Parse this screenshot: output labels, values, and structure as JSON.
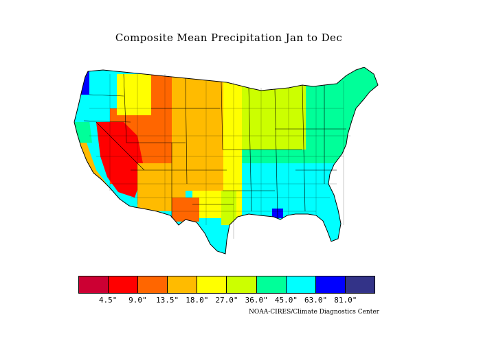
{
  "title": "Composite Mean Precipitation Jan to Dec",
  "credit": "NOAA-CIRES/Climate Diagnostics Center",
  "legend": {
    "colors": [
      "#cc0033",
      "#ff0000",
      "#ff6600",
      "#ffbb00",
      "#ffff00",
      "#ccff00",
      "#00ff99",
      "#00ffff",
      "#0000ff",
      "#333388"
    ],
    "labels": [
      "4.5\"",
      "9.0\"",
      "13.5\"",
      "18.0\"",
      "27.0\"",
      "36.0\"",
      "45.0\"",
      "63.0\"",
      "81.0\""
    ]
  },
  "map": {
    "region": "Contiguous United States",
    "variable": "Composite mean precipitation",
    "period": "Jan to Dec"
  }
}
